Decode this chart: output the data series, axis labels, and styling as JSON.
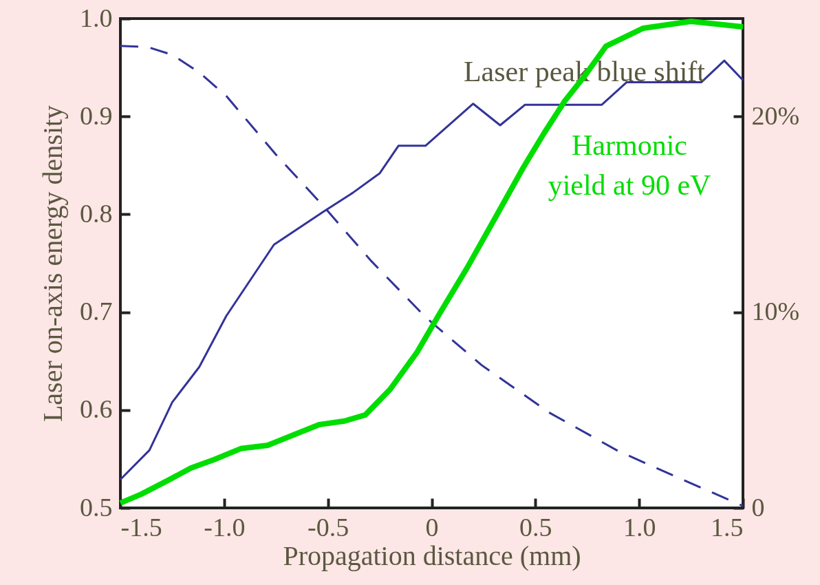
{
  "chart_data": {
    "type": "line",
    "xlabel": "Propagation distance (mm)",
    "ylabel": "Laser on-axis energy density",
    "xlim": [
      -1.5,
      1.5
    ],
    "xticks": [
      -1.5,
      {
        "value": -1,
        "label": "-1.0"
      },
      -0.5,
      0,
      0.5,
      {
        "value": 1,
        "label": "1.0"
      },
      1.5
    ],
    "ylim": [
      0.5,
      1.0
    ],
    "yticks": [
      0.5,
      0.6,
      0.7,
      0.8,
      0.9,
      {
        "value": 1,
        "label": "1.0"
      }
    ],
    "y2lim": [
      0,
      25
    ],
    "y2ticks": [
      0,
      {
        "value": 10,
        "label": "10%"
      },
      {
        "value": 20,
        "label": "20%"
      }
    ],
    "grid": false,
    "legend": false,
    "marker": "none",
    "series": [
      {
        "color": "#333399",
        "line_style": "dashed",
        "x": [
          -1.5,
          -1.37,
          -1.25,
          -1.12,
          -0.99,
          -0.75,
          -0.52,
          -0.29,
          -0.03,
          0.24,
          0.57,
          0.9,
          1.23,
          1.5
        ],
        "values": [
          0.972,
          0.971,
          0.963,
          0.945,
          0.921,
          0.861,
          0.808,
          0.752,
          0.695,
          0.646,
          0.597,
          0.558,
          0.527,
          0.502
        ]
      },
      {
        "name": "Laser peak blue shift",
        "color": "#333399",
        "line_style": "solid",
        "x": [
          -1.5,
          -1.36,
          -1.25,
          -1.12,
          -0.99,
          -0.76,
          -0.52,
          -0.38,
          -0.25,
          -0.16,
          -0.03,
          0.2,
          0.33,
          0.45,
          0.82,
          0.94,
          1.3,
          1.41,
          1.5
        ],
        "values": [
          0.529,
          0.559,
          0.608,
          0.644,
          0.696,
          0.769,
          0.803,
          0.822,
          0.842,
          0.87,
          0.87,
          0.913,
          0.891,
          0.912,
          0.912,
          0.935,
          0.935,
          0.957,
          0.937
        ]
      },
      {
        "name": "Harmonic yield at 90 eV",
        "color": "#00dd00",
        "line_style": "solid",
        "axis": "y2",
        "x": [
          -1.5,
          -1.4,
          -1.27,
          -1.16,
          -1.05,
          -0.92,
          -0.79,
          -0.65,
          -0.54,
          -0.42,
          -0.32,
          -0.2,
          -0.07,
          0.04,
          0.17,
          0.31,
          0.44,
          0.54,
          0.64,
          0.74,
          0.84,
          1.02,
          1.25,
          1.5
        ],
        "values": [
          0.25,
          0.7,
          1.41,
          2.04,
          2.46,
          3.03,
          3.2,
          3.8,
          4.26,
          4.44,
          4.75,
          6.06,
          7.96,
          9.96,
          12.25,
          14.89,
          17.36,
          19.12,
          20.77,
          22.11,
          23.59,
          24.51,
          24.86,
          24.58
        ]
      }
    ]
  }
}
